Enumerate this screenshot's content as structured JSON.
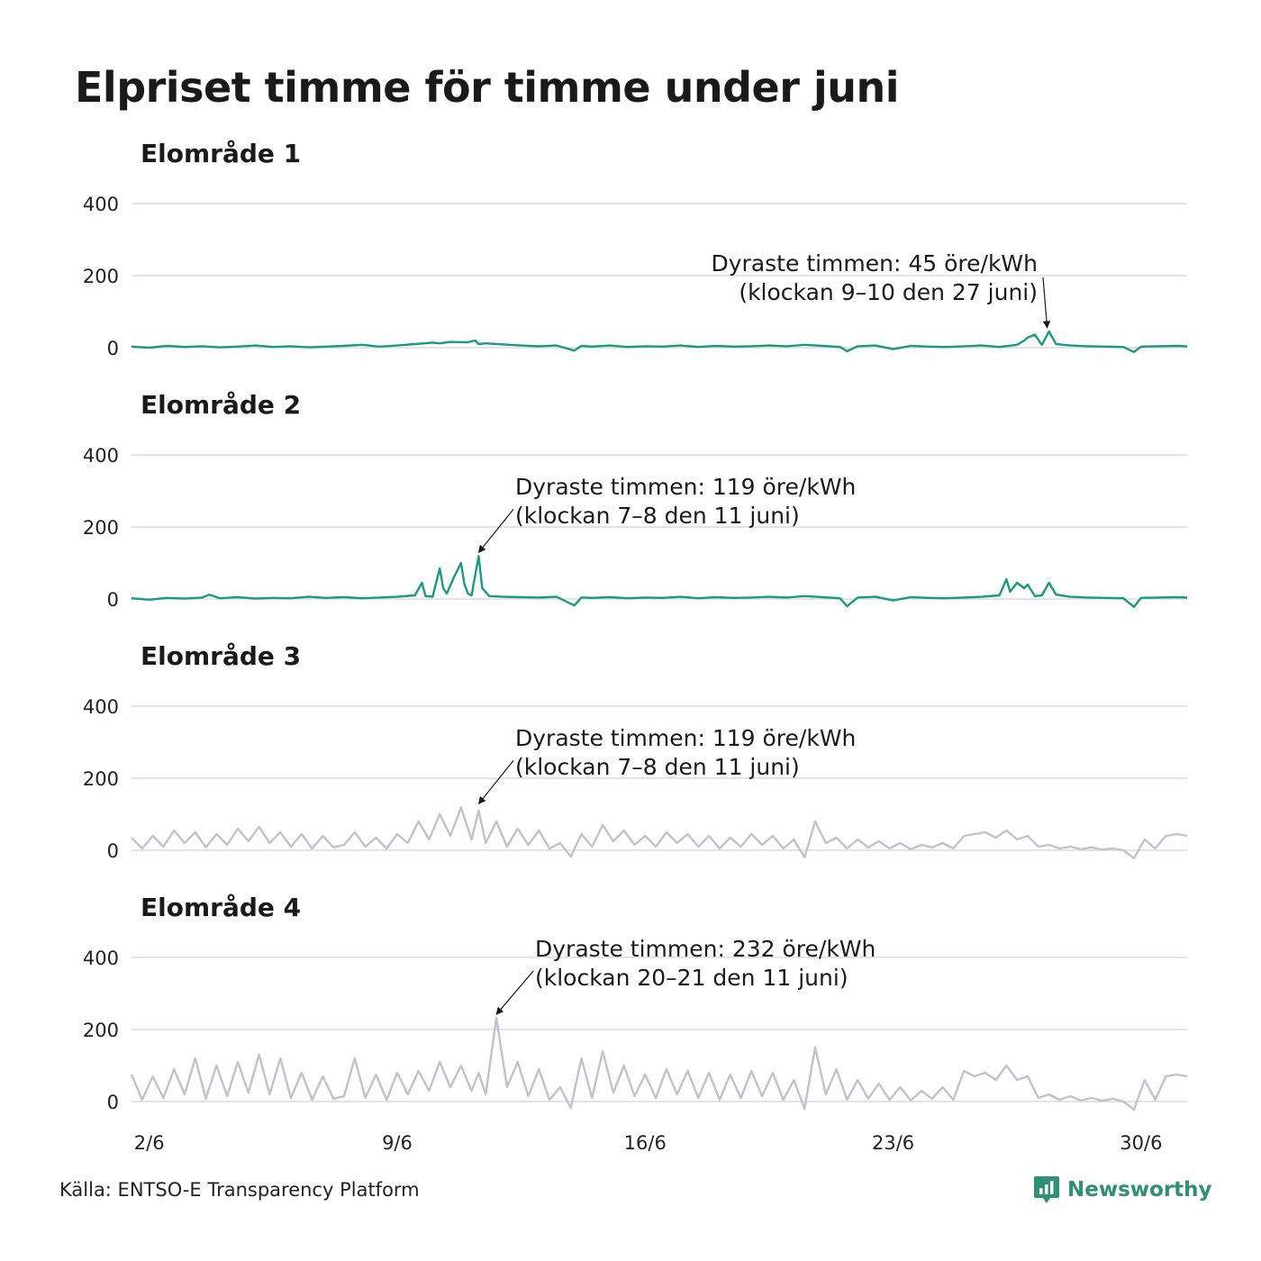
{
  "title": "Elpriset timme för timme under juni",
  "source": "Källa: ENTSO-E Transparency Platform",
  "brand": "Newsworthy",
  "colors": {
    "highlight": "#1a9983",
    "muted": "#c1c1cf",
    "grid": "#dcdcdc",
    "brand": "#2f8f77"
  },
  "chart_data": [
    {
      "type": "line",
      "title": "Elområde 1",
      "color": "#1a9983",
      "xlabel": "",
      "ylabel": "",
      "x_ticks": [
        "2/6",
        "9/6",
        "16/6",
        "23/6",
        "30/6"
      ],
      "x_tick_days": [
        2,
        9,
        16,
        23,
        30
      ],
      "xlim": [
        1.5,
        31.3
      ],
      "ylim": [
        0,
        400
      ],
      "y_ticks": [
        0,
        200,
        400
      ],
      "grid": true,
      "annotation": {
        "lines": [
          "Dyraste timmen: 45 öre/kWh",
          "(klockan 9–10 den 27 juni)"
        ],
        "align": "right",
        "point": [
          27.4,
          45
        ]
      },
      "series": [
        {
          "x": [
            1.5,
            2,
            2.5,
            3,
            3.5,
            4,
            4.5,
            5,
            5.5,
            6,
            6.5,
            7,
            7.5,
            8,
            8.5,
            9,
            9.5,
            10,
            10.2,
            10.5,
            11,
            11.2,
            11.3,
            11.5,
            12,
            12.5,
            13,
            13.5,
            14,
            14.2,
            14.5,
            15,
            15.5,
            16,
            16.5,
            17,
            17.5,
            18,
            18.5,
            19,
            19.5,
            20,
            20.5,
            21,
            21.5,
            21.7,
            22,
            22.5,
            23,
            23.5,
            24,
            24.5,
            25,
            25.5,
            26,
            26.5,
            26.7,
            26.8,
            27,
            27.2,
            27.4,
            27.6,
            28,
            28.5,
            29,
            29.5,
            29.8,
            30,
            30.5,
            31,
            31.3
          ],
          "y": [
            3,
            0,
            5,
            2,
            4,
            1,
            3,
            6,
            2,
            4,
            1,
            3,
            5,
            8,
            3,
            6,
            10,
            14,
            12,
            16,
            15,
            20,
            10,
            12,
            9,
            6,
            4,
            6,
            -8,
            5,
            3,
            6,
            2,
            4,
            3,
            6,
            2,
            5,
            3,
            4,
            6,
            4,
            8,
            5,
            2,
            -10,
            4,
            6,
            -4,
            5,
            3,
            2,
            4,
            6,
            2,
            8,
            20,
            28,
            36,
            8,
            45,
            10,
            6,
            4,
            3,
            2,
            -12,
            3,
            4,
            5,
            4
          ]
        }
      ]
    },
    {
      "type": "line",
      "title": "Elområde 2",
      "color": "#1a9983",
      "xlabel": "",
      "ylabel": "",
      "x_ticks": [
        "2/6",
        "9/6",
        "16/6",
        "23/6",
        "30/6"
      ],
      "x_tick_days": [
        2,
        9,
        16,
        23,
        30
      ],
      "xlim": [
        1.5,
        31.3
      ],
      "ylim": [
        0,
        400
      ],
      "y_ticks": [
        0,
        200,
        400
      ],
      "grid": true,
      "annotation": {
        "lines": [
          "Dyraste timmen: 119 öre/kWh",
          "(klockan 7–8 den 11 juni)"
        ],
        "align": "left",
        "point": [
          11.3,
          119
        ]
      },
      "series": [
        {
          "x": [
            1.5,
            2,
            2.5,
            3,
            3.5,
            3.7,
            4,
            4.5,
            5,
            5.5,
            6,
            6.5,
            7,
            7.5,
            8,
            8.5,
            9,
            9.5,
            9.7,
            9.8,
            10,
            10.2,
            10.3,
            10.4,
            10.6,
            10.8,
            10.9,
            11,
            11.1,
            11.3,
            11.4,
            11.6,
            12,
            12.5,
            13,
            13.5,
            14,
            14.2,
            14.5,
            15,
            15.5,
            16,
            16.5,
            17,
            17.5,
            18,
            18.5,
            19,
            19.5,
            20,
            20.5,
            21,
            21.5,
            21.7,
            22,
            22.5,
            23,
            23.5,
            24,
            24.5,
            25,
            25.5,
            26,
            26.2,
            26.3,
            26.5,
            26.7,
            26.8,
            27,
            27.2,
            27.4,
            27.6,
            28,
            28.5,
            29,
            29.5,
            29.8,
            30,
            30.5,
            31,
            31.3
          ],
          "y": [
            2,
            -2,
            3,
            1,
            4,
            12,
            2,
            5,
            1,
            3,
            2,
            6,
            3,
            5,
            2,
            4,
            6,
            10,
            45,
            8,
            6,
            85,
            30,
            15,
            60,
            100,
            40,
            15,
            10,
            119,
            30,
            8,
            6,
            5,
            4,
            6,
            -18,
            4,
            3,
            5,
            2,
            4,
            3,
            6,
            2,
            5,
            3,
            4,
            6,
            4,
            8,
            5,
            2,
            -20,
            4,
            6,
            -4,
            5,
            3,
            2,
            4,
            6,
            10,
            55,
            20,
            45,
            30,
            40,
            8,
            10,
            45,
            12,
            6,
            4,
            3,
            2,
            -22,
            3,
            4,
            5,
            4
          ]
        }
      ]
    },
    {
      "type": "line",
      "title": "Elområde 3",
      "color": "#c1c1cf",
      "xlabel": "",
      "ylabel": "",
      "x_ticks": [
        "2/6",
        "9/6",
        "16/6",
        "23/6",
        "30/6"
      ],
      "x_tick_days": [
        2,
        9,
        16,
        23,
        30
      ],
      "xlim": [
        1.5,
        31.3
      ],
      "ylim": [
        0,
        400
      ],
      "y_ticks": [
        0,
        200,
        400
      ],
      "grid": true,
      "annotation": {
        "lines": [
          "Dyraste timmen: 119 öre/kWh",
          "(klockan 7–8 den 11 juni)"
        ],
        "align": "left",
        "point": [
          11.3,
          119
        ]
      },
      "series": [
        {
          "x": [
            1.5,
            1.8,
            2.1,
            2.4,
            2.7,
            3,
            3.3,
            3.6,
            3.9,
            4.2,
            4.5,
            4.8,
            5.1,
            5.4,
            5.7,
            6,
            6.3,
            6.6,
            6.9,
            7.2,
            7.5,
            7.8,
            8.1,
            8.4,
            8.7,
            9,
            9.3,
            9.6,
            9.9,
            10.2,
            10.5,
            10.8,
            11.1,
            11.3,
            11.5,
            11.8,
            12.1,
            12.4,
            12.7,
            13,
            13.3,
            13.6,
            13.9,
            14.2,
            14.5,
            14.8,
            15.1,
            15.4,
            15.7,
            16,
            16.3,
            16.6,
            16.9,
            17.2,
            17.5,
            17.8,
            18.1,
            18.4,
            18.7,
            19,
            19.3,
            19.6,
            19.9,
            20.2,
            20.5,
            20.8,
            21.1,
            21.4,
            21.7,
            22,
            22.3,
            22.6,
            22.9,
            23.2,
            23.5,
            23.8,
            24.1,
            24.4,
            24.7,
            25,
            25.3,
            25.6,
            25.9,
            26.2,
            26.5,
            26.8,
            27.1,
            27.4,
            27.7,
            28,
            28.3,
            28.6,
            28.9,
            29.2,
            29.5,
            29.8,
            30.1,
            30.4,
            30.7,
            31,
            31.3
          ],
          "y": [
            35,
            5,
            40,
            10,
            55,
            20,
            50,
            8,
            45,
            15,
            60,
            25,
            65,
            20,
            50,
            10,
            45,
            5,
            40,
            8,
            15,
            50,
            10,
            35,
            5,
            45,
            20,
            80,
            30,
            100,
            40,
            119,
            30,
            110,
            20,
            80,
            10,
            60,
            15,
            55,
            5,
            20,
            -18,
            45,
            10,
            70,
            25,
            55,
            15,
            40,
            10,
            50,
            20,
            45,
            10,
            40,
            5,
            35,
            10,
            45,
            15,
            40,
            5,
            30,
            -20,
            80,
            20,
            35,
            5,
            30,
            8,
            25,
            5,
            20,
            3,
            15,
            8,
            20,
            5,
            40,
            45,
            50,
            35,
            55,
            30,
            40,
            10,
            15,
            5,
            10,
            3,
            8,
            2,
            5,
            0,
            -22,
            30,
            5,
            40,
            45,
            40
          ]
        }
      ]
    },
    {
      "type": "line",
      "title": "Elområde 4",
      "color": "#c1c1cf",
      "xlabel": "",
      "ylabel": "",
      "x_ticks": [
        "2/6",
        "9/6",
        "16/6",
        "23/6",
        "30/6"
      ],
      "x_tick_days": [
        2,
        9,
        16,
        23,
        30
      ],
      "xlim": [
        1.5,
        31.3
      ],
      "ylim": [
        0,
        400
      ],
      "y_ticks": [
        0,
        200,
        400
      ],
      "grid": true,
      "annotation": {
        "lines": [
          "Dyraste timmen: 232 öre/kWh",
          "(klockan 20–21 den 11 juni)"
        ],
        "align": "left",
        "point": [
          11.8,
          232
        ]
      },
      "series": [
        {
          "x": [
            1.5,
            1.8,
            2.1,
            2.4,
            2.7,
            3,
            3.3,
            3.6,
            3.9,
            4.2,
            4.5,
            4.8,
            5.1,
            5.4,
            5.7,
            6,
            6.3,
            6.6,
            6.9,
            7.2,
            7.5,
            7.8,
            8.1,
            8.4,
            8.7,
            9,
            9.3,
            9.6,
            9.9,
            10.2,
            10.5,
            10.8,
            11.1,
            11.3,
            11.5,
            11.8,
            12.1,
            12.4,
            12.7,
            13,
            13.3,
            13.6,
            13.9,
            14.2,
            14.5,
            14.8,
            15.1,
            15.4,
            15.7,
            16,
            16.3,
            16.6,
            16.9,
            17.2,
            17.5,
            17.8,
            18.1,
            18.4,
            18.7,
            19,
            19.3,
            19.6,
            19.9,
            20.2,
            20.5,
            20.8,
            21.1,
            21.4,
            21.7,
            22,
            22.3,
            22.6,
            22.9,
            23.2,
            23.5,
            23.8,
            24.1,
            24.4,
            24.7,
            25,
            25.3,
            25.6,
            25.9,
            26.2,
            26.5,
            26.8,
            27.1,
            27.4,
            27.7,
            28,
            28.3,
            28.6,
            28.9,
            29.2,
            29.5,
            29.8,
            30.1,
            30.4,
            30.7,
            31,
            31.3
          ],
          "y": [
            75,
            5,
            70,
            10,
            90,
            20,
            120,
            8,
            100,
            15,
            110,
            25,
            130,
            20,
            120,
            10,
            80,
            5,
            70,
            8,
            15,
            120,
            10,
            75,
            5,
            80,
            20,
            85,
            30,
            110,
            40,
            100,
            30,
            80,
            20,
            232,
            40,
            110,
            15,
            90,
            5,
            40,
            -18,
            120,
            10,
            140,
            25,
            100,
            15,
            75,
            10,
            90,
            20,
            85,
            10,
            80,
            5,
            75,
            10,
            85,
            15,
            80,
            5,
            60,
            -20,
            150,
            20,
            90,
            5,
            60,
            8,
            50,
            5,
            40,
            3,
            30,
            8,
            40,
            5,
            85,
            70,
            80,
            60,
            100,
            60,
            70,
            10,
            20,
            5,
            15,
            3,
            10,
            2,
            8,
            0,
            -22,
            60,
            5,
            70,
            75,
            70
          ]
        }
      ]
    }
  ]
}
